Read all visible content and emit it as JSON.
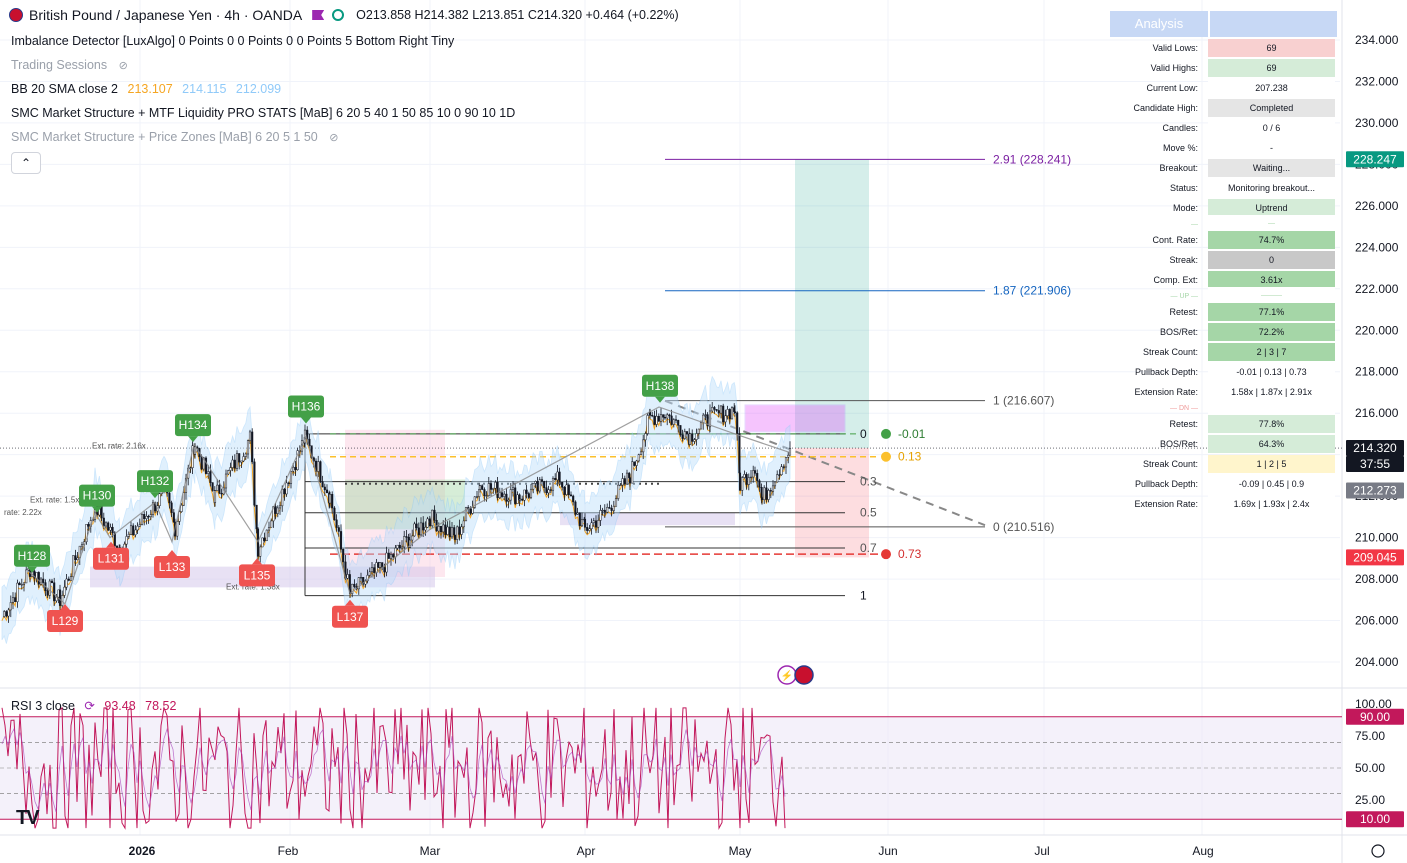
{
  "header": {
    "symbol": "British Pound / Japanese Yen · 4h · OANDA",
    "ohlc": "O213.858  H214.382  L213.851  C214.320  +0.464 (+0.22%)"
  },
  "indicators": [
    {
      "name": "Imbalance Detector [LuxAlgo] 0 Points 0 0 Points 0 0 Points 5 Bottom Right Tiny",
      "muted": false
    },
    {
      "name": "Trading Sessions",
      "muted": true
    },
    {
      "name": "BB 20 SMA close 2",
      "muted": false
    },
    {
      "name": "SMC Market Structure + MTF Liquidity PRO STATS [MaB] 6 20 5 40 1 50 85 10 0 90 10 1D",
      "muted": false
    },
    {
      "name": "SMC Market Structure + Price Zones [MaB] 6 20 5 1 50",
      "muted": true
    }
  ],
  "bb_values": {
    "v1": "213.107",
    "v2": "214.115",
    "v3": "212.099",
    "c1": "#f5a623",
    "c2": "#90caf9",
    "c3": "#90caf9"
  },
  "collapse_glyph": "⌃",
  "analysis": {
    "title": "Analysis",
    "rows": [
      {
        "label": "Valid Lows:",
        "value": "69",
        "bg": "#f8d0d0"
      },
      {
        "label": "Valid Highs:",
        "value": "69",
        "bg": "#d5ecd8"
      },
      {
        "label": "Current Low:",
        "value": "207.238",
        "bg": "#ffffff"
      },
      {
        "label": "Candidate High:",
        "value": "Completed",
        "bg": "#e5e5e5"
      },
      {
        "label": "Candles:",
        "value": "0 / 6",
        "bg": "#ffffff"
      },
      {
        "label": "Move %:",
        "value": "-",
        "bg": "#ffffff"
      },
      {
        "label": "Breakout:",
        "value": "Waiting...",
        "bg": "#e5e5e5"
      },
      {
        "label": "Status:",
        "value": "Monitoring breakout...",
        "bg": "#ffffff"
      },
      {
        "label": "Mode:",
        "value": "Uptrend",
        "bg": "#d5ecd8"
      },
      {
        "label": "—",
        "value": "—",
        "bg": "#ffffff"
      },
      {
        "label": "Cont. Rate:",
        "value": "74.7%",
        "bg": "#a5d6a7"
      },
      {
        "label": "Streak:",
        "value": "0",
        "bg": "#c8c8c8"
      },
      {
        "label": "Comp. Ext:",
        "value": "3.61x",
        "bg": "#a5d6a7"
      },
      {
        "label": "— UP —",
        "value": "———",
        "bg": "#ffffff"
      },
      {
        "label": "Retest:",
        "value": "77.1%",
        "bg": "#a5d6a7"
      },
      {
        "label": "BOS/Ret:",
        "value": "72.2%",
        "bg": "#a5d6a7"
      },
      {
        "label": "Streak Count:",
        "value": "2 | 3 | 7",
        "bg": "#a5d6a7"
      },
      {
        "label": "Pullback Depth:",
        "value": "-0.01 | 0.13 | 0.73",
        "bg": "#ffffff"
      },
      {
        "label": "Extension Rate:",
        "value": "1.58x | 1.87x | 2.91x",
        "bg": "#ffffff"
      },
      {
        "label": "— DN —",
        "value": "",
        "bg": "#ffffff"
      },
      {
        "label": "Retest:",
        "value": "77.8%",
        "bg": "#d5ecd8"
      },
      {
        "label": "BOS/Ret:",
        "value": "64.3%",
        "bg": "#d5ecd8"
      },
      {
        "label": "Streak Count:",
        "value": "1 | 2 | 5",
        "bg": "#fff5cc"
      },
      {
        "label": "Pullback Depth:",
        "value": "-0.09 | 0.45 | 0.9",
        "bg": "#ffffff"
      },
      {
        "label": "Extension Rate:",
        "value": "1.69x | 1.93x | 2.4x",
        "bg": "#ffffff"
      }
    ]
  },
  "price_axis": {
    "ticks": [
      "234.000",
      "232.000",
      "230.000",
      "228.000",
      "226.000",
      "224.000",
      "222.000",
      "220.000",
      "218.000",
      "216.000",
      "214.000",
      "212.000",
      "210.000",
      "208.000",
      "206.000",
      "204.000"
    ],
    "tags": [
      {
        "text": "228.247",
        "bg": "#089981"
      },
      {
        "text": "214.320",
        "bg": "#131722"
      },
      {
        "text": "37:55",
        "bg": "#131722"
      },
      {
        "text": "212.273",
        "bg": "#787b86"
      },
      {
        "text": "209.045",
        "bg": "#f23645"
      }
    ]
  },
  "rsi": {
    "label": "RSI 3 close",
    "v1": "93.48",
    "v2": "78.52",
    "ticks": [
      "100.00",
      "75.00",
      "50.00",
      "25.00"
    ],
    "tags": [
      {
        "text": "90.00",
        "bg": "#c2185b"
      },
      {
        "text": "10.00",
        "bg": "#c2185b"
      }
    ]
  },
  "time_axis": [
    "2026",
    "Feb",
    "Mar",
    "Apr",
    "May",
    "Jun",
    "Jul",
    "Aug"
  ],
  "fib_levels": [
    {
      "text": "2.91 (228.241)",
      "color": "#7b1fa2"
    },
    {
      "text": "1.87 (221.906)",
      "color": "#1565c0"
    },
    {
      "text": "1 (216.607)",
      "color": "#555555"
    },
    {
      "text": "0 (210.516)",
      "color": "#555555"
    }
  ],
  "retrace_labels": [
    {
      "text": "0",
      "color": "#131722"
    },
    {
      "text": "0.3",
      "color": "#555555"
    },
    {
      "text": "0.5",
      "color": "#555555"
    },
    {
      "text": "0.7",
      "color": "#555555"
    },
    {
      "text": "1",
      "color": "#131722"
    }
  ],
  "marker_labels": [
    {
      "text": "-0.01",
      "color": "#2e7d32",
      "dot": "#43a047"
    },
    {
      "text": "0.13",
      "color": "#e6a100",
      "dot": "#fbc02d"
    },
    {
      "text": "0.73",
      "color": "#d32f2f",
      "dot": "#e53935"
    }
  ],
  "ext_rate_labels": [
    "Ext. rate: 2.16x",
    "Ext. rate: 1.38x",
    "Ext. rate: 1.5x",
    "rate: 2.22x"
  ],
  "swing_labels": [
    {
      "text": "H128",
      "kind": "high"
    },
    {
      "text": "H130",
      "kind": "high"
    },
    {
      "text": "H132",
      "kind": "high"
    },
    {
      "text": "H134",
      "kind": "high"
    },
    {
      "text": "H136",
      "kind": "high"
    },
    {
      "text": "H138",
      "kind": "high"
    },
    {
      "text": "L129",
      "kind": "low"
    },
    {
      "text": "L131",
      "kind": "low"
    },
    {
      "text": "L133",
      "kind": "low"
    },
    {
      "text": "L135",
      "kind": "low"
    },
    {
      "text": "L137",
      "kind": "low"
    }
  ],
  "colors": {
    "up": "#089981",
    "down": "#f23645",
    "rsi": "#c2185b",
    "grid": "#f0f3fa",
    "bb_band": "#bbdefb"
  }
}
